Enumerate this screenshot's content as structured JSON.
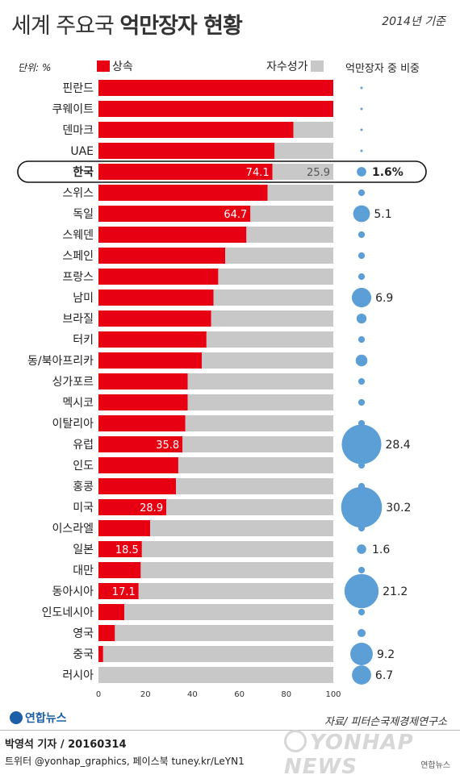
{
  "header": {
    "title_light": "세계 주요국",
    "title_bold": "억만장자 현황",
    "date": "2014년 기준"
  },
  "legend": {
    "unit": "단위: %",
    "inherit": "상속",
    "self_made": "자수성가",
    "share_title": "억만장자 중 비중"
  },
  "colors": {
    "inherit": "#e60012",
    "self_made": "#c8c8c8",
    "bubble": "#5b9fd6",
    "highlight_border": "#111111"
  },
  "chart_data": {
    "type": "bar",
    "orientation": "horizontal",
    "stacked": true,
    "xlim": [
      0,
      100
    ],
    "x_ticks": [
      "0",
      "20",
      "40",
      "60",
      "80",
      "100"
    ],
    "categories": [
      "핀란드",
      "쿠웨이트",
      "덴마크",
      "UAE",
      "한국",
      "스위스",
      "독일",
      "스웨덴",
      "스페인",
      "프랑스",
      "남미",
      "브라질",
      "터키",
      "동/북아프리카",
      "싱가포르",
      "멕시코",
      "이탈리아",
      "유럽",
      "인도",
      "홍콩",
      "미국",
      "이스라엘",
      "일본",
      "대만",
      "동아시아",
      "인도네시아",
      "영국",
      "중국",
      "러시아"
    ],
    "series": [
      {
        "name": "상속",
        "values": [
          100,
          100,
          83,
          75,
          74.1,
          72,
          64.7,
          63,
          54,
          51,
          49,
          48,
          46,
          44,
          38,
          38,
          37,
          35.8,
          34,
          33,
          28.9,
          22,
          18.5,
          18,
          17.1,
          11,
          7,
          2,
          0
        ]
      },
      {
        "name": "자수성가",
        "values": [
          0,
          0,
          17,
          25,
          25.9,
          28,
          35.3,
          37,
          46,
          49,
          51,
          52,
          54,
          56,
          62,
          62,
          63,
          64.2,
          66,
          67,
          71.1,
          78,
          81.5,
          82,
          82.9,
          89,
          93,
          98,
          100
        ]
      }
    ],
    "inherit_labels": [
      "",
      "",
      "",
      "",
      "74.1",
      "",
      "64.7",
      "",
      "",
      "",
      "",
      "",
      "",
      "",
      "",
      "",
      "",
      "35.8",
      "",
      "",
      "28.9",
      "",
      "18.5",
      "",
      "17.1",
      "",
      "",
      "",
      ""
    ],
    "self_labels": [
      "",
      "",
      "",
      "",
      "25.9",
      "",
      "",
      "",
      "",
      "",
      "",
      "",
      "",
      "",
      "",
      "",
      "",
      "",
      "",
      "",
      "",
      "",
      "",
      "",
      "",
      "",
      "",
      "",
      ""
    ],
    "share_pct": [
      0.1,
      0.1,
      0.1,
      0.1,
      1.6,
      0.8,
      5.1,
      0.8,
      0.8,
      0.8,
      6.9,
      1.8,
      0.8,
      2.5,
      0.8,
      0.8,
      0.8,
      28.4,
      0.8,
      0.8,
      30.2,
      0.8,
      1.6,
      0.8,
      21.2,
      0.8,
      1.2,
      9.2,
      6.7
    ],
    "share_labels": [
      "",
      "",
      "",
      "",
      "1.6%",
      "",
      "5.1",
      "",
      "",
      "",
      "6.9",
      "",
      "",
      "",
      "",
      "",
      "",
      "28.4",
      "",
      "",
      "30.2",
      "",
      "1.6",
      "",
      "21.2",
      "",
      "",
      "9.2",
      "6.7"
    ],
    "highlight": "한국"
  },
  "footer": {
    "logo": "연합뉴스",
    "source": "자료/ 피터슨국제경제연구소",
    "reporter": "박영석 기자 / 20160314",
    "social": "트위터 @yonhap_graphics, 페이스북 tuney.kr/LeYN1",
    "watermark": "YONHAP NEWS",
    "credit": "연합뉴스"
  }
}
